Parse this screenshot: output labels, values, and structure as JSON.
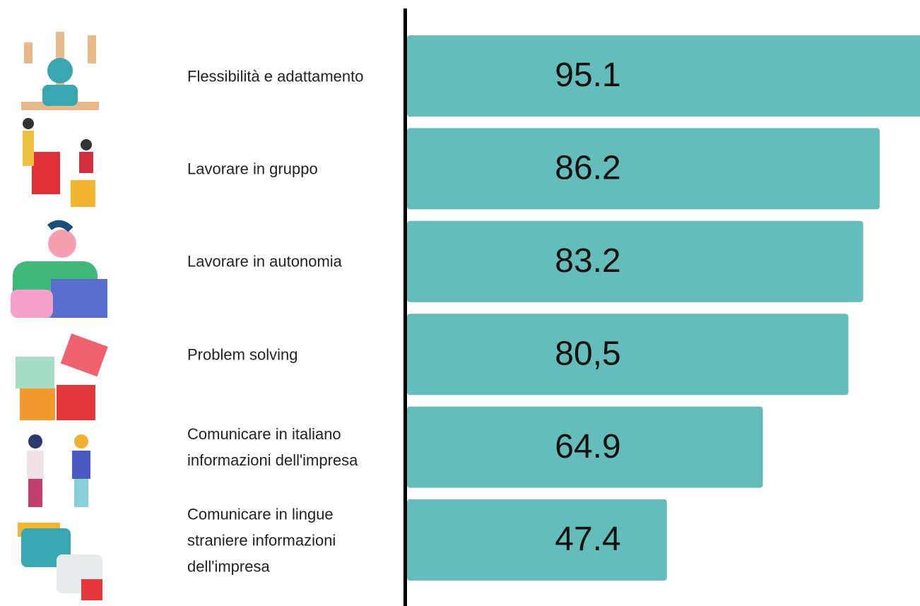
{
  "chart_data": {
    "type": "bar",
    "categories": [
      "Flessibilità e adattamento",
      "Lavorare in gruppo",
      "Lavorare in autonomia",
      "Problem solving",
      "Comunicare in italiano informazioni dell'impresa",
      "Comunicare in lingue straniere informazioni dell'impresa"
    ],
    "values": [
      95.1,
      86.2,
      83.2,
      80.5,
      64.9,
      47.4
    ],
    "value_labels": [
      "95.1",
      "86.2",
      "83.2",
      "80,5",
      "64.9",
      "47.4"
    ],
    "color": "#64bcbb"
  }
}
